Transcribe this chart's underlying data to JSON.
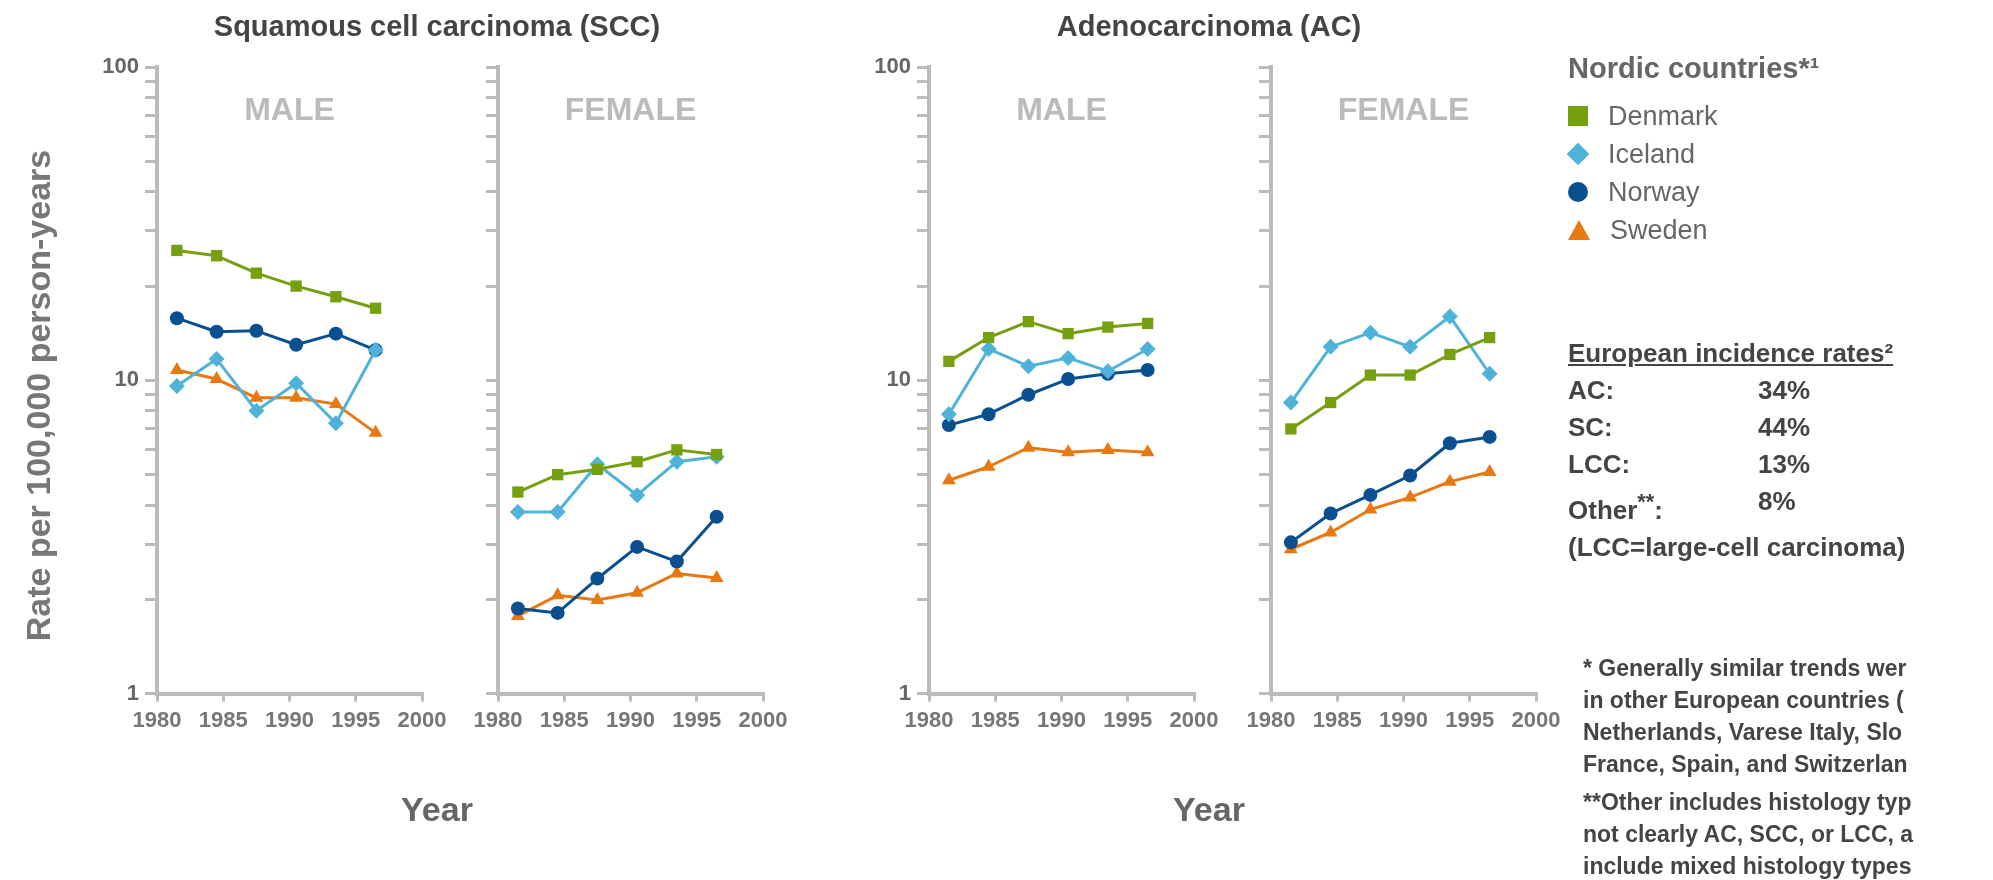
{
  "chart_data": [
    {
      "type": "line",
      "title": "MALE",
      "ylabel": "Rate per 100,000 person-years",
      "xlabel": "Year",
      "annotations": [
        "Squamous cell carcinoma (SCC)"
      ],
      "x": [
        1981.5,
        1984.5,
        1987.5,
        1990.5,
        1993.5,
        1996.5
      ],
      "xlim": [
        1980,
        2000
      ],
      "xticks": [
        1980,
        1985,
        1990,
        1995,
        2000
      ],
      "ylim": [
        1,
        100
      ],
      "yticks": [
        1,
        {
          "value": 2,
          "label": null
        },
        {
          "value": 3,
          "label": null
        },
        {
          "value": 4,
          "label": null
        },
        {
          "value": 5,
          "label": null
        },
        {
          "value": 6,
          "label": null
        },
        {
          "value": 7,
          "label": null
        },
        {
          "value": 8,
          "label": null
        },
        {
          "value": 9,
          "label": null
        },
        10,
        {
          "value": 20,
          "label": null
        },
        {
          "value": 30,
          "label": null
        },
        {
          "value": 40,
          "label": null
        },
        {
          "value": 50,
          "label": null
        },
        {
          "value": 60,
          "label": null
        },
        {
          "value": 70,
          "label": null
        },
        {
          "value": 80,
          "label": null
        },
        {
          "value": 90,
          "label": null
        },
        100
      ],
      "log": true,
      "legend": false,
      "series": [
        {
          "color": "#76a010",
          "marker": "square",
          "values": [
            26,
            25,
            22,
            20,
            18.5,
            17
          ]
        },
        {
          "color": "#4fb3d9",
          "marker": "diamond",
          "values": [
            9.6,
            11.7,
            8.0,
            9.8,
            7.3,
            12.5
          ]
        },
        {
          "color": "#0a5090",
          "marker": "circle",
          "values": [
            15.8,
            14.3,
            14.4,
            13.0,
            14.1,
            12.5
          ]
        },
        {
          "color": "#e87810",
          "marker": "triangle",
          "values": [
            10.8,
            10.1,
            8.8,
            8.8,
            8.4,
            6.8
          ]
        }
      ]
    },
    {
      "type": "line",
      "title": "FEMALE",
      "x": [
        1981.5,
        1984.5,
        1987.5,
        1990.5,
        1993.5,
        1996.5
      ],
      "xlim": [
        1980,
        2000
      ],
      "xticks": [
        1980,
        1985,
        1990,
        1995,
        2000
      ],
      "ylim": [
        1,
        100
      ],
      "yticks": [
        1,
        {
          "value": 2,
          "label": null
        },
        {
          "value": 3,
          "label": null
        },
        {
          "value": 4,
          "label": null
        },
        {
          "value": 5,
          "label": null
        },
        {
          "value": 6,
          "label": null
        },
        {
          "value": 7,
          "label": null
        },
        {
          "value": 8,
          "label": null
        },
        {
          "value": 9,
          "label": null
        },
        10,
        {
          "value": 20,
          "label": null
        },
        {
          "value": 30,
          "label": null
        },
        {
          "value": 40,
          "label": null
        },
        {
          "value": 50,
          "label": null
        },
        {
          "value": 60,
          "label": null
        },
        {
          "value": 70,
          "label": null
        },
        {
          "value": 80,
          "label": null
        },
        {
          "value": 90,
          "label": null
        },
        100
      ],
      "log": true,
      "legend": false,
      "tick_labels": "x",
      "series": [
        {
          "color": "#76a010",
          "marker": "square",
          "values": [
            4.4,
            5.0,
            5.2,
            5.5,
            6.0,
            5.8
          ]
        },
        {
          "color": "#4fb3d9",
          "marker": "diamond",
          "values": [
            3.8,
            3.8,
            5.4,
            4.3,
            5.5,
            5.7
          ]
        },
        {
          "color": "#0a5090",
          "marker": "circle",
          "values": [
            1.87,
            1.81,
            2.33,
            2.94,
            2.64,
            3.67
          ]
        },
        {
          "color": "#e87810",
          "marker": "triangle",
          "values": [
            1.77,
            2.06,
            1.99,
            2.1,
            2.42,
            2.34
          ]
        }
      ]
    },
    {
      "type": "line",
      "title": "MALE",
      "xlabel": "Year",
      "annotations": [
        "Adenocarcinoma (AC)"
      ],
      "x": [
        1981.5,
        1984.5,
        1987.5,
        1990.5,
        1993.5,
        1996.5
      ],
      "xlim": [
        1980,
        2000
      ],
      "xticks": [
        1980,
        1985,
        1990,
        1995,
        2000
      ],
      "ylim": [
        1,
        100
      ],
      "yticks": [
        1,
        {
          "value": 2,
          "label": null
        },
        {
          "value": 3,
          "label": null
        },
        {
          "value": 4,
          "label": null
        },
        {
          "value": 5,
          "label": null
        },
        {
          "value": 6,
          "label": null
        },
        {
          "value": 7,
          "label": null
        },
        {
          "value": 8,
          "label": null
        },
        {
          "value": 9,
          "label": null
        },
        10,
        {
          "value": 20,
          "label": null
        },
        {
          "value": 30,
          "label": null
        },
        {
          "value": 40,
          "label": null
        },
        {
          "value": 50,
          "label": null
        },
        {
          "value": 60,
          "label": null
        },
        {
          "value": 70,
          "label": null
        },
        {
          "value": 80,
          "label": null
        },
        {
          "value": 90,
          "label": null
        },
        100
      ],
      "log": true,
      "legend": false,
      "series": [
        {
          "color": "#76a010",
          "marker": "square",
          "values": [
            11.5,
            13.7,
            15.4,
            14.1,
            14.8,
            15.2
          ]
        },
        {
          "color": "#4fb3d9",
          "marker": "diamond",
          "values": [
            7.8,
            12.6,
            11.1,
            11.8,
            10.7,
            12.6
          ]
        },
        {
          "color": "#0a5090",
          "marker": "circle",
          "values": [
            7.2,
            7.8,
            9.0,
            10.1,
            10.5,
            10.8
          ]
        },
        {
          "color": "#e87810",
          "marker": "triangle",
          "values": [
            4.8,
            5.3,
            6.1,
            5.9,
            6.0,
            5.9
          ]
        }
      ]
    },
    {
      "type": "line",
      "title": "FEMALE",
      "legend_title": "Nordic countries*¹",
      "x": [
        1981.5,
        1984.5,
        1987.5,
        1990.5,
        1993.5,
        1996.5
      ],
      "xlim": [
        1980,
        2000
      ],
      "xticks": [
        1980,
        1985,
        1990,
        1995,
        2000
      ],
      "ylim": [
        1,
        100
      ],
      "yticks": [
        1,
        {
          "value": 2,
          "label": null
        },
        {
          "value": 3,
          "label": null
        },
        {
          "value": 4,
          "label": null
        },
        {
          "value": 5,
          "label": null
        },
        {
          "value": 6,
          "label": null
        },
        {
          "value": 7,
          "label": null
        },
        {
          "value": 8,
          "label": null
        },
        {
          "value": 9,
          "label": null
        },
        10,
        {
          "value": 20,
          "label": null
        },
        {
          "value": 30,
          "label": null
        },
        {
          "value": 40,
          "label": null
        },
        {
          "value": 50,
          "label": null
        },
        {
          "value": 60,
          "label": null
        },
        {
          "value": 70,
          "label": null
        },
        {
          "value": 80,
          "label": null
        },
        {
          "value": 90,
          "label": null
        },
        100
      ],
      "log": true,
      "legend": "right",
      "tick_labels": "x",
      "series": [
        {
          "name": "Denmark",
          "color": "#76a010",
          "marker": "square",
          "values": [
            7.0,
            8.5,
            10.4,
            10.4,
            12.1,
            13.7
          ]
        },
        {
          "name": "Iceland",
          "color": "#4fb3d9",
          "marker": "diamond",
          "values": [
            8.5,
            12.8,
            14.2,
            12.8,
            16.0,
            10.5
          ]
        },
        {
          "name": "Norway",
          "color": "#0a5090",
          "marker": "circle",
          "values": [
            3.04,
            3.76,
            4.31,
            4.97,
            6.3,
            6.6
          ]
        },
        {
          "name": "Sweden",
          "color": "#e87810",
          "marker": "triangle",
          "values": [
            2.89,
            3.27,
            3.87,
            4.23,
            4.75,
            5.1
          ]
        }
      ]
    },
    {
      "type": "other",
      "title": "European incidence rates²",
      "annotations": [
        "AC:",
        "34%",
        "SC:",
        "44%",
        "LCC:",
        "13%",
        "Other$^{**}$:",
        "8%",
        "(LCC=large-cell carcinoma)",
        "*  Generally similar trends wer",
        "in other European countries (",
        "Netherlands, Varese Italy, Slo",
        "France, Spain, and Switzerlan",
        "**Other includes histology typ",
        "not clearly AC, SCC, or LCC, a",
        "include mixed histology types"
      ]
    }
  ]
}
